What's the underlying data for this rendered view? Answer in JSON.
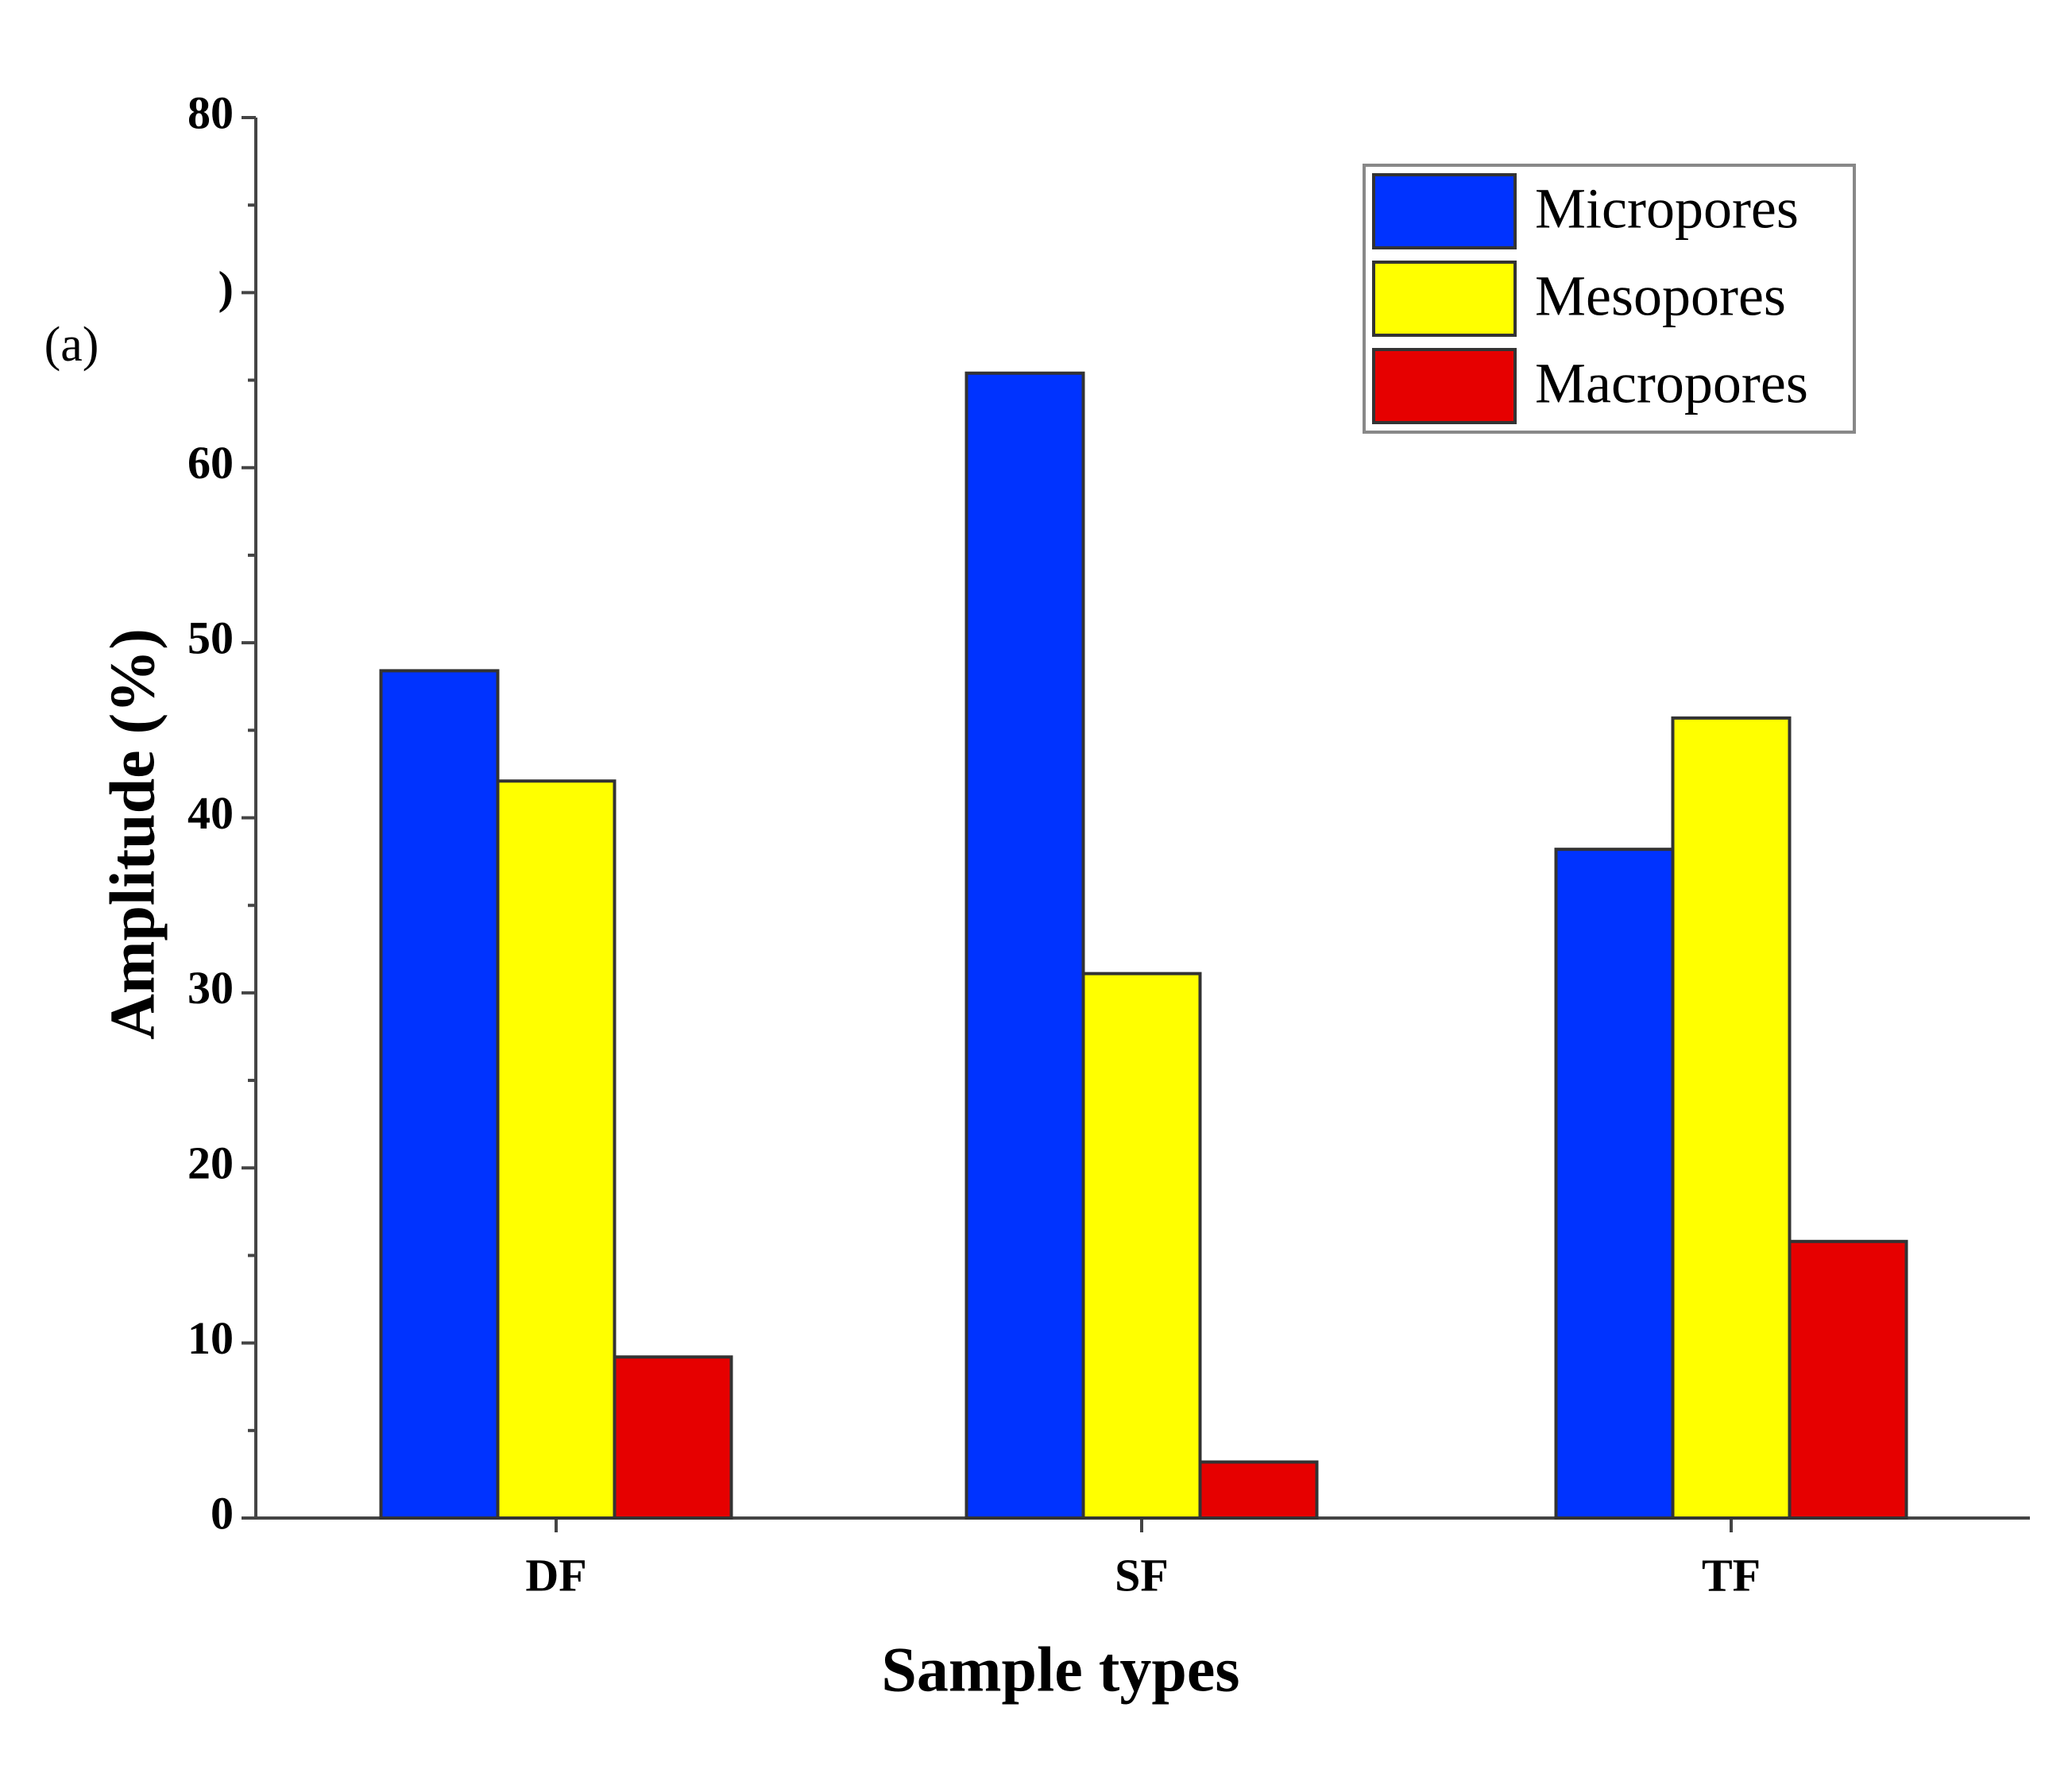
{
  "chart_data": {
    "type": "bar",
    "annotation": "(a)",
    "x_label": "Sample types",
    "y_label": "Amplitude (%)",
    "categories": [
      "DF",
      "SF",
      "TF"
    ],
    "series": [
      {
        "name": "Micropores",
        "color": "#0033ff",
        "values": [
          48.4,
          65.4,
          38.2
        ]
      },
      {
        "name": "Mesopores",
        "color": "#ffff00",
        "values": [
          42.1,
          31.1,
          45.7
        ]
      },
      {
        "name": "Macropores",
        "color": "#e60000",
        "values": [
          9.2,
          3.2,
          15.8
        ]
      }
    ],
    "ylim": [
      0,
      80
    ],
    "yticks": [
      0,
      10,
      20,
      30,
      40,
      50,
      60,
      {
        "value": 70,
        "label": ")"
      },
      80
    ],
    "yminorticks": [
      5,
      15,
      25,
      35,
      45,
      55,
      65,
      75
    ],
    "legend": "top-right"
  }
}
